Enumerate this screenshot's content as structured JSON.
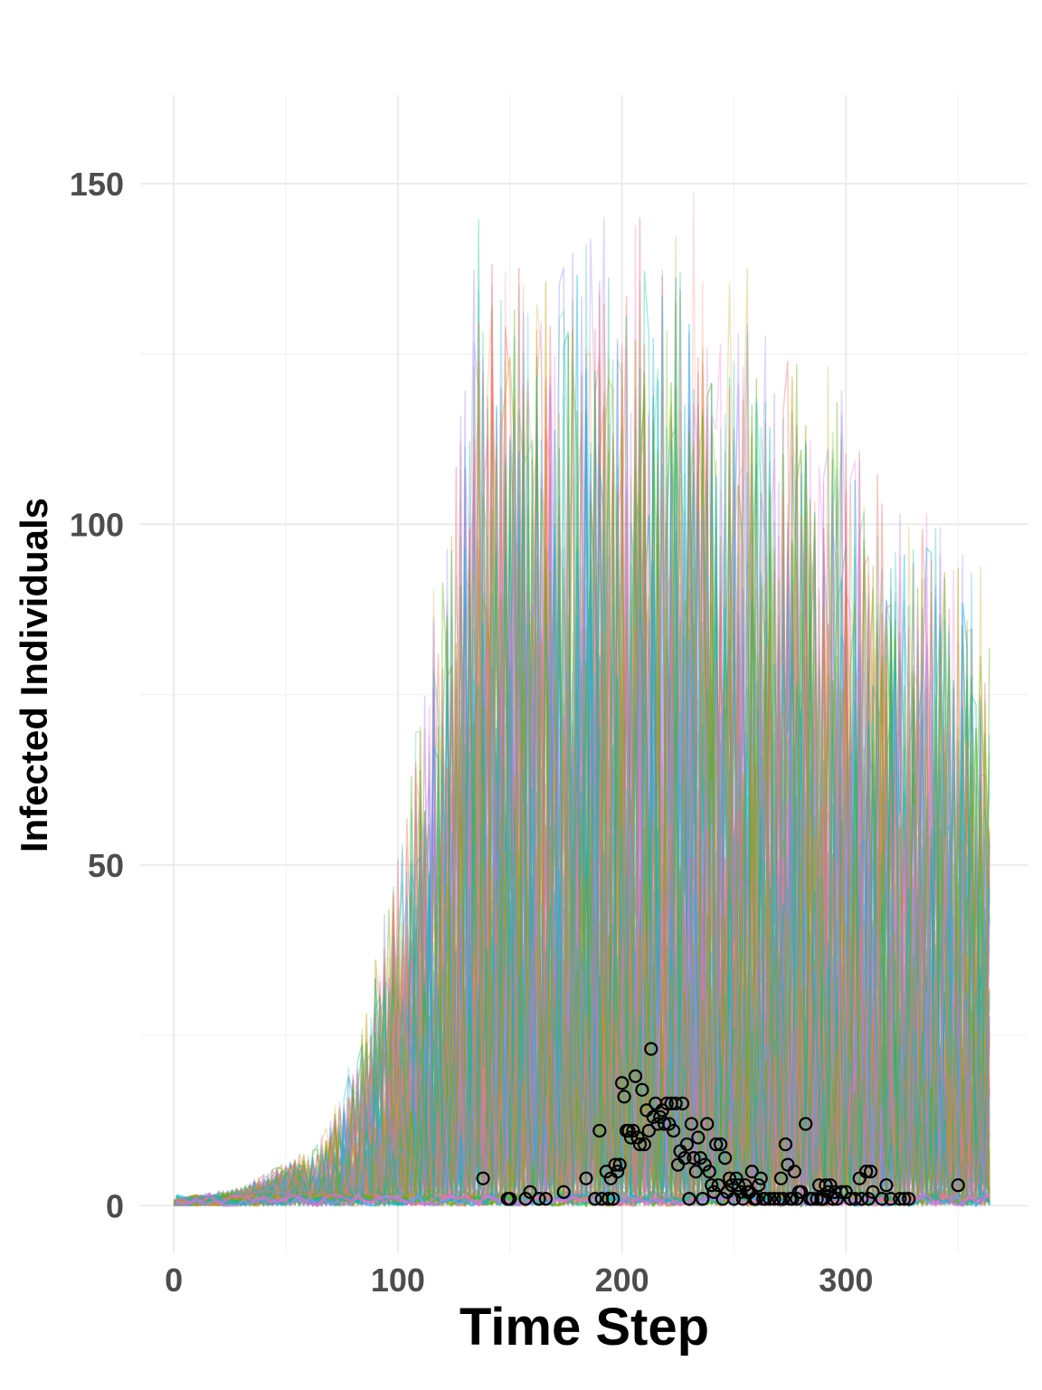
{
  "chart_data": {
    "type": "line",
    "title": "",
    "xlabel": "Time Step",
    "ylabel": "Infected Individuals",
    "xlim": [
      -15,
      381
    ],
    "ylim": [
      -7,
      163
    ],
    "x_ticks": [
      0,
      100,
      200,
      300
    ],
    "x_tick_labels": [
      "0",
      "100",
      "200",
      "300"
    ],
    "y_ticks": [
      0,
      50,
      100,
      150
    ],
    "y_tick_labels": [
      "0",
      "50",
      "100",
      "150"
    ],
    "x_minor_ticks": [
      50,
      150,
      250,
      350
    ],
    "y_minor_ticks": [
      25,
      75,
      125
    ],
    "grid": true,
    "legend": "none",
    "simulated_series": {
      "description_of_values": "ensemble of stochastic simulation trajectories, x from 0 to 365",
      "n_x": 365,
      "max_value": 155,
      "colors": [
        "#F8766D",
        "#C49A00",
        "#53B400",
        "#00C094",
        "#00B6EB",
        "#A58AFF",
        "#FB61D7"
      ]
    },
    "observed_points": {
      "marker": "open-circle",
      "color": "#000000",
      "x": [
        138,
        149,
        150,
        157,
        159,
        163,
        166,
        174,
        184,
        188,
        190,
        191,
        193,
        194,
        195,
        196,
        197,
        198,
        199,
        200,
        201,
        202,
        203,
        204,
        205,
        206,
        207,
        208,
        209,
        210,
        211,
        212,
        213,
        214,
        215,
        216,
        217,
        218,
        219,
        220,
        221,
        222,
        223,
        224,
        225,
        226,
        227,
        228,
        229,
        230,
        231,
        232,
        233,
        234,
        235,
        236,
        237,
        238,
        239,
        240,
        241,
        242,
        243,
        244,
        245,
        246,
        247,
        248,
        249,
        250,
        251,
        252,
        253,
        254,
        255,
        256,
        257,
        258,
        259,
        260,
        261,
        262,
        263,
        264,
        266,
        268,
        270,
        271,
        272,
        273,
        274,
        275,
        276,
        277,
        278,
        279,
        280,
        282,
        284,
        285,
        287,
        288,
        289,
        290,
        291,
        292,
        293,
        294,
        295,
        296,
        298,
        300,
        302,
        304,
        306,
        307,
        309,
        310,
        311,
        312,
        316,
        318,
        320,
        324,
        326,
        328,
        350
      ],
      "y": [
        4,
        1,
        1,
        1,
        2,
        1,
        1,
        2,
        4,
        1,
        11,
        1,
        5,
        1,
        4,
        1,
        6,
        5,
        6,
        18,
        16,
        11,
        11,
        10,
        11,
        19,
        10,
        9,
        17,
        9,
        14,
        11,
        23,
        13,
        15,
        12,
        13,
        14,
        12,
        15,
        12,
        15,
        11,
        15,
        6,
        8,
        15,
        7,
        9,
        1,
        12,
        7,
        5,
        10,
        7,
        1,
        6,
        12,
        5,
        3,
        2,
        9,
        3,
        9,
        1,
        7,
        2,
        4,
        3,
        1,
        4,
        3,
        2,
        1,
        3,
        2,
        2,
        5,
        1,
        1,
        3,
        4,
        1,
        1,
        1,
        1,
        1,
        4,
        1,
        9,
        6,
        1,
        1,
        5,
        1,
        2,
        2,
        12,
        1,
        1,
        1,
        3,
        1,
        1,
        3,
        2,
        3,
        1,
        2,
        1,
        2,
        2,
        1,
        1,
        4,
        1,
        5,
        1,
        5,
        2,
        1,
        3,
        1,
        1,
        1,
        1,
        3
      ]
    }
  }
}
